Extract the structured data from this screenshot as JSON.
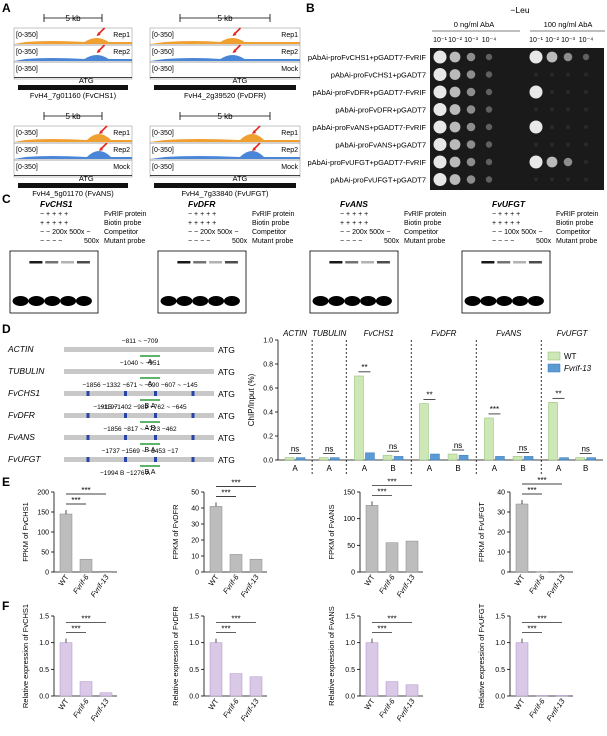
{
  "panels": {
    "A": {
      "label": "A",
      "scale": "5 kb",
      "range": "[0-350]",
      "atg": "ATG",
      "tracks": [
        "Rep1",
        "Rep2",
        "Mock"
      ],
      "genes": [
        "FvH4_7g01160 (FvCHS1)",
        "FvH4_2g39520 (FvDFR)",
        "FvH4_5g01170 (FvANS)",
        "FvH4_7g33840 (FvUFGT)"
      ]
    },
    "B": {
      "label": "B",
      "header": "−Leu",
      "conditions": [
        "0 ng/ml AbA",
        "100 ng/ml AbA"
      ],
      "dilutions": [
        "10⁻¹",
        "10⁻²",
        "10⁻³",
        "10⁻⁴"
      ],
      "rows": [
        "pAbAi-proFvCHS1+pGADT7-FvRIF",
        "pAbAi-proFvCHS1+pGADT7",
        "pAbAi-proFvDFR+pGADT7-FvRIF",
        "pAbAi-proFvDFR+pGADT7",
        "pAbAi-proFvANS+pGADT7-FvRIF",
        "pAbAi-proFvANS+pGADT7",
        "pAbAi-proFvUFGT+pGADT7-FvRIF",
        "pAbAi-proFvUFGT+pGADT7"
      ]
    },
    "C": {
      "label": "C",
      "genes": [
        "FvCHS1",
        "FvDFR",
        "FvANS",
        "FvUFGT"
      ],
      "row_labels": [
        "FvRIF protein",
        "Biotin probe",
        "Competitor",
        "Mutant probe"
      ],
      "plus_signs": "− + + + +",
      "competitor": "− − 200x 500x −",
      "competitor_ufgt": "− − 100x 500x −",
      "mutant_500": "500x"
    },
    "D": {
      "label": "D",
      "promoters": [
        {
          "name": "ACTIN",
          "coords": "−811 ~ −709",
          "sites": "A"
        },
        {
          "name": "TUBULIN",
          "coords": "−1040 ~ −951",
          "sites": "A"
        },
        {
          "name": "FvCHS1",
          "coords": "−1856 −1332 −671 ~ −590 −607 ~ −145",
          "sub": "−1197",
          "sites": "B A"
        },
        {
          "name": "FvDFR",
          "coords": "−1915 −1402 −989 −762 ~ −645",
          "sites": "A B"
        },
        {
          "name": "FvANS",
          "coords": "−1856 −817 ~ −723 −462",
          "sites": "B A"
        },
        {
          "name": "FvUFGT",
          "coords": "−1737 −1569 ~ −1453 −17",
          "sub": "−1994 B −1276 A",
          "sites": "B A"
        }
      ],
      "atg": "ATG",
      "ylabel": "ChIP/Input (%)",
      "ns": "ns",
      "sig2": "**",
      "sig3": "***",
      "legend": [
        "WT",
        "Fvrif-13"
      ]
    },
    "E": {
      "label": "E",
      "ylabels": [
        "FPKM of FvCHS1",
        "FPKM of FvDFR",
        "FPKM of FvANS",
        "FPKM of FvUFGT"
      ]
    },
    "F": {
      "label": "F",
      "ylabels": [
        "Relative expression of FvCHS1",
        "Relative expression of FvDFR",
        "Relative expression of FvANS",
        "Relative expression of FvUFGT"
      ]
    },
    "sig": "***",
    "xcats": [
      "WT",
      "Fvrif-6",
      "Fvrif-13"
    ]
  },
  "colors": {
    "rep1": "#f0a030",
    "rep2": "#4a86d8",
    "mock": "#000000",
    "wt": "#cde8b6",
    "mut": "#5b9bd5",
    "grey": "#bdbdbd",
    "purple": "#d9c8e6",
    "arrow": "#e3261f"
  },
  "chart_data": [
    {
      "type": "bar",
      "title": "",
      "ylabel": "ChIP/Input (%)",
      "ylim": [
        0,
        1.0
      ],
      "yticks": [
        "0.0",
        "0.2",
        "0.4",
        "0.6",
        "0.8",
        "1.0"
      ],
      "groups": [
        "ACTIN",
        "TUBULIN",
        "FvCHS1",
        "FvDFR",
        "FvANS",
        "FvUFGT"
      ],
      "categories": [
        "A",
        "A",
        "A",
        "B",
        "A",
        "B",
        "A",
        "B",
        "A",
        "B"
      ],
      "series": [
        {
          "name": "WT",
          "values": [
            0.02,
            0.02,
            0.7,
            0.04,
            0.47,
            0.05,
            0.35,
            0.03,
            0.48,
            0.02
          ]
        },
        {
          "name": "Fvrif-13",
          "values": [
            0.02,
            0.02,
            0.06,
            0.03,
            0.05,
            0.04,
            0.03,
            0.03,
            0.02,
            0.02
          ]
        }
      ]
    },
    {
      "type": "bar",
      "ylabel": "FPKM of FvCHS1",
      "categories": [
        "WT",
        "Fvrif-6",
        "Fvrif-13"
      ],
      "values": [
        145,
        32,
        2
      ],
      "ylim": [
        0,
        200
      ],
      "yticks": [
        "0",
        "50",
        "100",
        "150",
        "200"
      ]
    },
    {
      "type": "bar",
      "ylabel": "FPKM of FvDFR",
      "categories": [
        "WT",
        "Fvrif-6",
        "Fvrif-13"
      ],
      "values": [
        41,
        11,
        8
      ],
      "ylim": [
        0,
        50
      ],
      "yticks": [
        "0",
        "10",
        "20",
        "30",
        "40",
        "50"
      ]
    },
    {
      "type": "bar",
      "ylabel": "FPKM of FvANS",
      "categories": [
        "WT",
        "Fvrif-6",
        "Fvrif-13"
      ],
      "values": [
        125,
        55,
        58
      ],
      "ylim": [
        0,
        150
      ],
      "yticks": [
        "0",
        "50",
        "100",
        "150"
      ]
    },
    {
      "type": "bar",
      "ylabel": "FPKM of FvUFGT",
      "categories": [
        "WT",
        "Fvrif-6",
        "Fvrif-13"
      ],
      "values": [
        34,
        0.2,
        0.3
      ],
      "ylim": [
        0,
        40
      ],
      "yticks": [
        "0",
        "10",
        "20",
        "30",
        "40"
      ]
    },
    {
      "type": "bar",
      "ylabel": "Relative expression of FvCHS1",
      "categories": [
        "WT",
        "Fvrif-6",
        "Fvrif-13"
      ],
      "values": [
        1.0,
        0.27,
        0.06
      ],
      "ylim": [
        0,
        1.5
      ],
      "yticks": [
        "0.0",
        "0.5",
        "1.0",
        "1.5"
      ]
    },
    {
      "type": "bar",
      "ylabel": "Relative expression of FvDFR",
      "categories": [
        "WT",
        "Fvrif-6",
        "Fvrif-13"
      ],
      "values": [
        1.0,
        0.42,
        0.36
      ],
      "ylim": [
        0,
        1.5
      ],
      "yticks": [
        "0.0",
        "0.5",
        "1.0",
        "1.5"
      ]
    },
    {
      "type": "bar",
      "ylabel": "Relative expression of FvANS",
      "categories": [
        "WT",
        "Fvrif-6",
        "Fvrif-13"
      ],
      "values": [
        1.0,
        0.27,
        0.21
      ],
      "ylim": [
        0,
        1.5
      ],
      "yticks": [
        "0.0",
        "0.5",
        "1.0",
        "1.5"
      ]
    },
    {
      "type": "bar",
      "ylabel": "Relative expression of FvUFGT",
      "categories": [
        "WT",
        "Fvrif-6",
        "Fvrif-13"
      ],
      "values": [
        1.0,
        0.01,
        0.01
      ],
      "ylim": [
        0,
        1.5
      ],
      "yticks": [
        "0.0",
        "0.5",
        "1.0",
        "1.5"
      ]
    }
  ]
}
